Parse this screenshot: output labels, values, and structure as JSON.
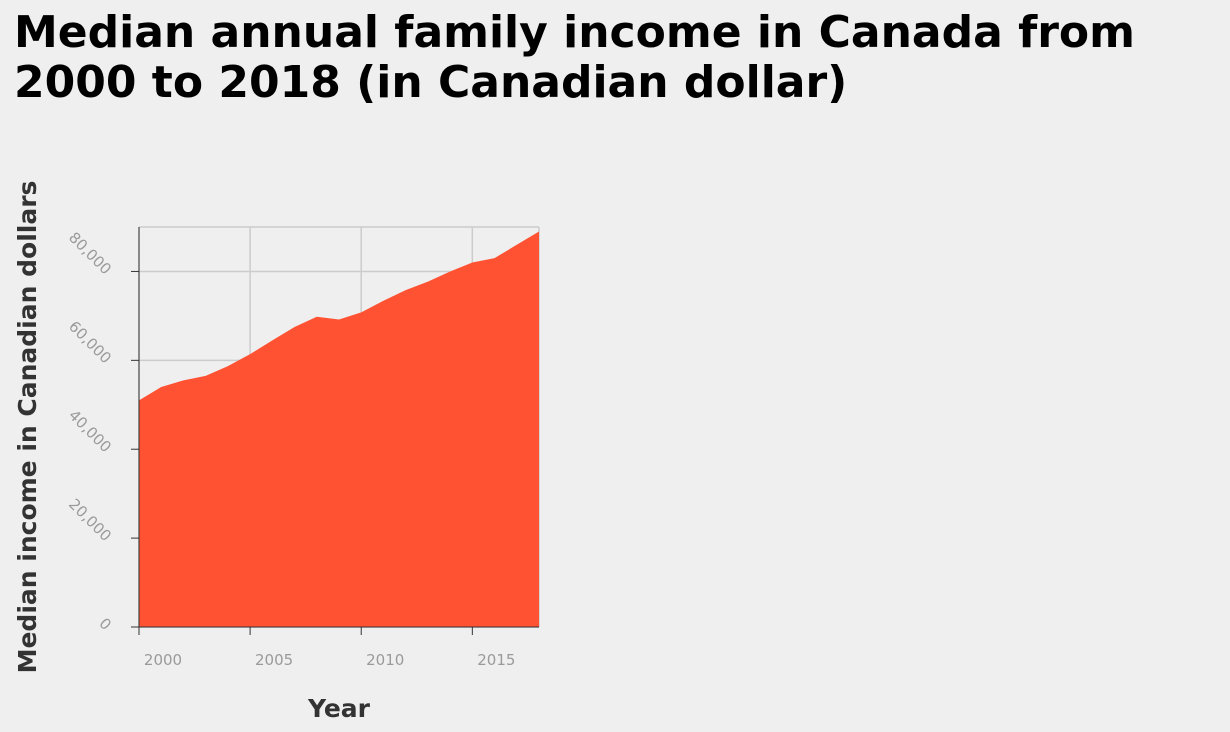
{
  "chart_data": {
    "type": "area",
    "title": "Median annual family income in Canada from 2000 to 2018 (in Canadian dollar)",
    "xlabel": "Year",
    "ylabel": "Median income in Canadian dollars",
    "x": [
      2000,
      2001,
      2002,
      2003,
      2004,
      2005,
      2006,
      2007,
      2008,
      2009,
      2010,
      2011,
      2012,
      2013,
      2014,
      2015,
      2016,
      2017,
      2018
    ],
    "series": [
      {
        "values": [
          51000,
          54000,
          55500,
          56500,
          58700,
          61400,
          64500,
          67500,
          69800,
          69200,
          70800,
          73400,
          75800,
          77700,
          80000,
          82000,
          83000,
          86000,
          89000
        ],
        "color": "#ff5233"
      }
    ],
    "xlim": [
      2000,
      2018
    ],
    "ylim": [
      0,
      90000
    ],
    "x_ticks": [
      "2000",
      "2005",
      "2010",
      "2015"
    ],
    "y_ticks": [
      "0",
      "20,000",
      "40,000",
      "60,000",
      "80,000"
    ],
    "grid": true,
    "grid_color": "#cccccc",
    "background": "#efefef"
  }
}
